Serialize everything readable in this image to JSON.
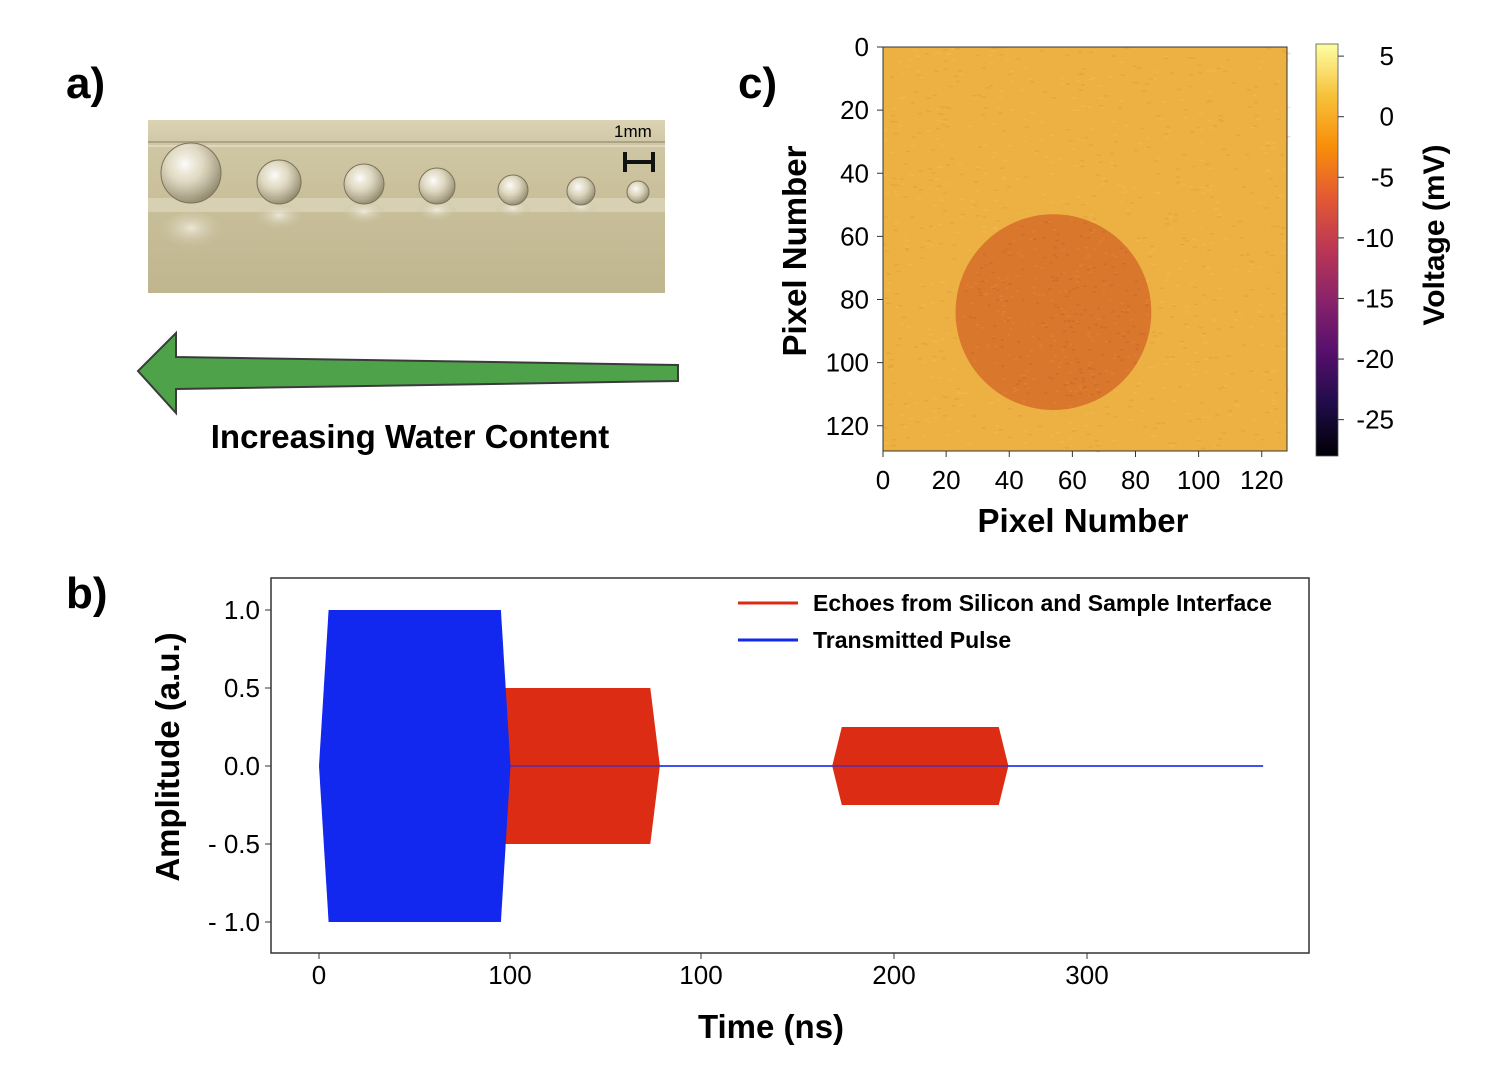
{
  "panels": {
    "a": {
      "letter": "a)",
      "scale_bar_label": "1mm",
      "arrow_label": "Increasing Water Content",
      "arrow_color": "#4ea24a"
    },
    "b": {
      "letter": "b)"
    },
    "c": {
      "letter": "c)"
    }
  },
  "chart_data": [
    {
      "type": "heatmap",
      "panel": "c",
      "xlabel": "Pixel Number",
      "ylabel": "Pixel Number",
      "x_ticks": [
        "0",
        "20",
        "40",
        "60",
        "80",
        "100",
        "120"
      ],
      "y_ticks": [
        "0",
        "20",
        "40",
        "60",
        "80",
        "100",
        "120"
      ],
      "xlim": [
        0,
        128
      ],
      "ylim": [
        0,
        128
      ],
      "background_value_mV": 0,
      "feature": {
        "shape": "circle",
        "center_x": 54,
        "center_y": 84,
        "radius": 31,
        "value_mV": -4
      },
      "colorbar": {
        "label": "Voltage (mV)",
        "ticks": [
          "5",
          "0",
          "-5",
          "-10",
          "-15",
          "-20",
          "-25"
        ],
        "range": [
          -28,
          6
        ],
        "colormap": "inferno",
        "colors": [
          "#000004",
          "#1f0c48",
          "#550f6d",
          "#88226a",
          "#ba3655",
          "#e35933",
          "#f98e09",
          "#f7c13a",
          "#fcffa4"
        ]
      },
      "pixel_colors": {
        "background": "#ecb043",
        "feature": "#d9772c"
      }
    },
    {
      "type": "line",
      "panel": "b",
      "xlabel": "Time (ns)",
      "ylabel": "Amplitude (a.u.)",
      "x_ticks": [
        "0",
        "100",
        "100",
        "200",
        "300"
      ],
      "y_ticks": [
        "1.0",
        "0.5",
        "0.0",
        "- 0.5",
        "- 1.0"
      ],
      "ylim": [
        -1.1,
        1.1
      ],
      "series": [
        {
          "name": "Echoes from Silicon and Sample Interface",
          "color": "#dd2c14",
          "bursts": [
            {
              "start": 88,
              "end": 178,
              "amplitude": 0.5
            },
            {
              "start": 268,
              "end": 360,
              "amplitude": 0.25
            }
          ]
        },
        {
          "name": "Transmitted Pulse",
          "color": "#1228ee",
          "bursts": [
            {
              "start": 0,
              "end": 100,
              "amplitude": 1.0
            }
          ],
          "baseline": [
            100,
            493
          ]
        }
      ]
    }
  ]
}
